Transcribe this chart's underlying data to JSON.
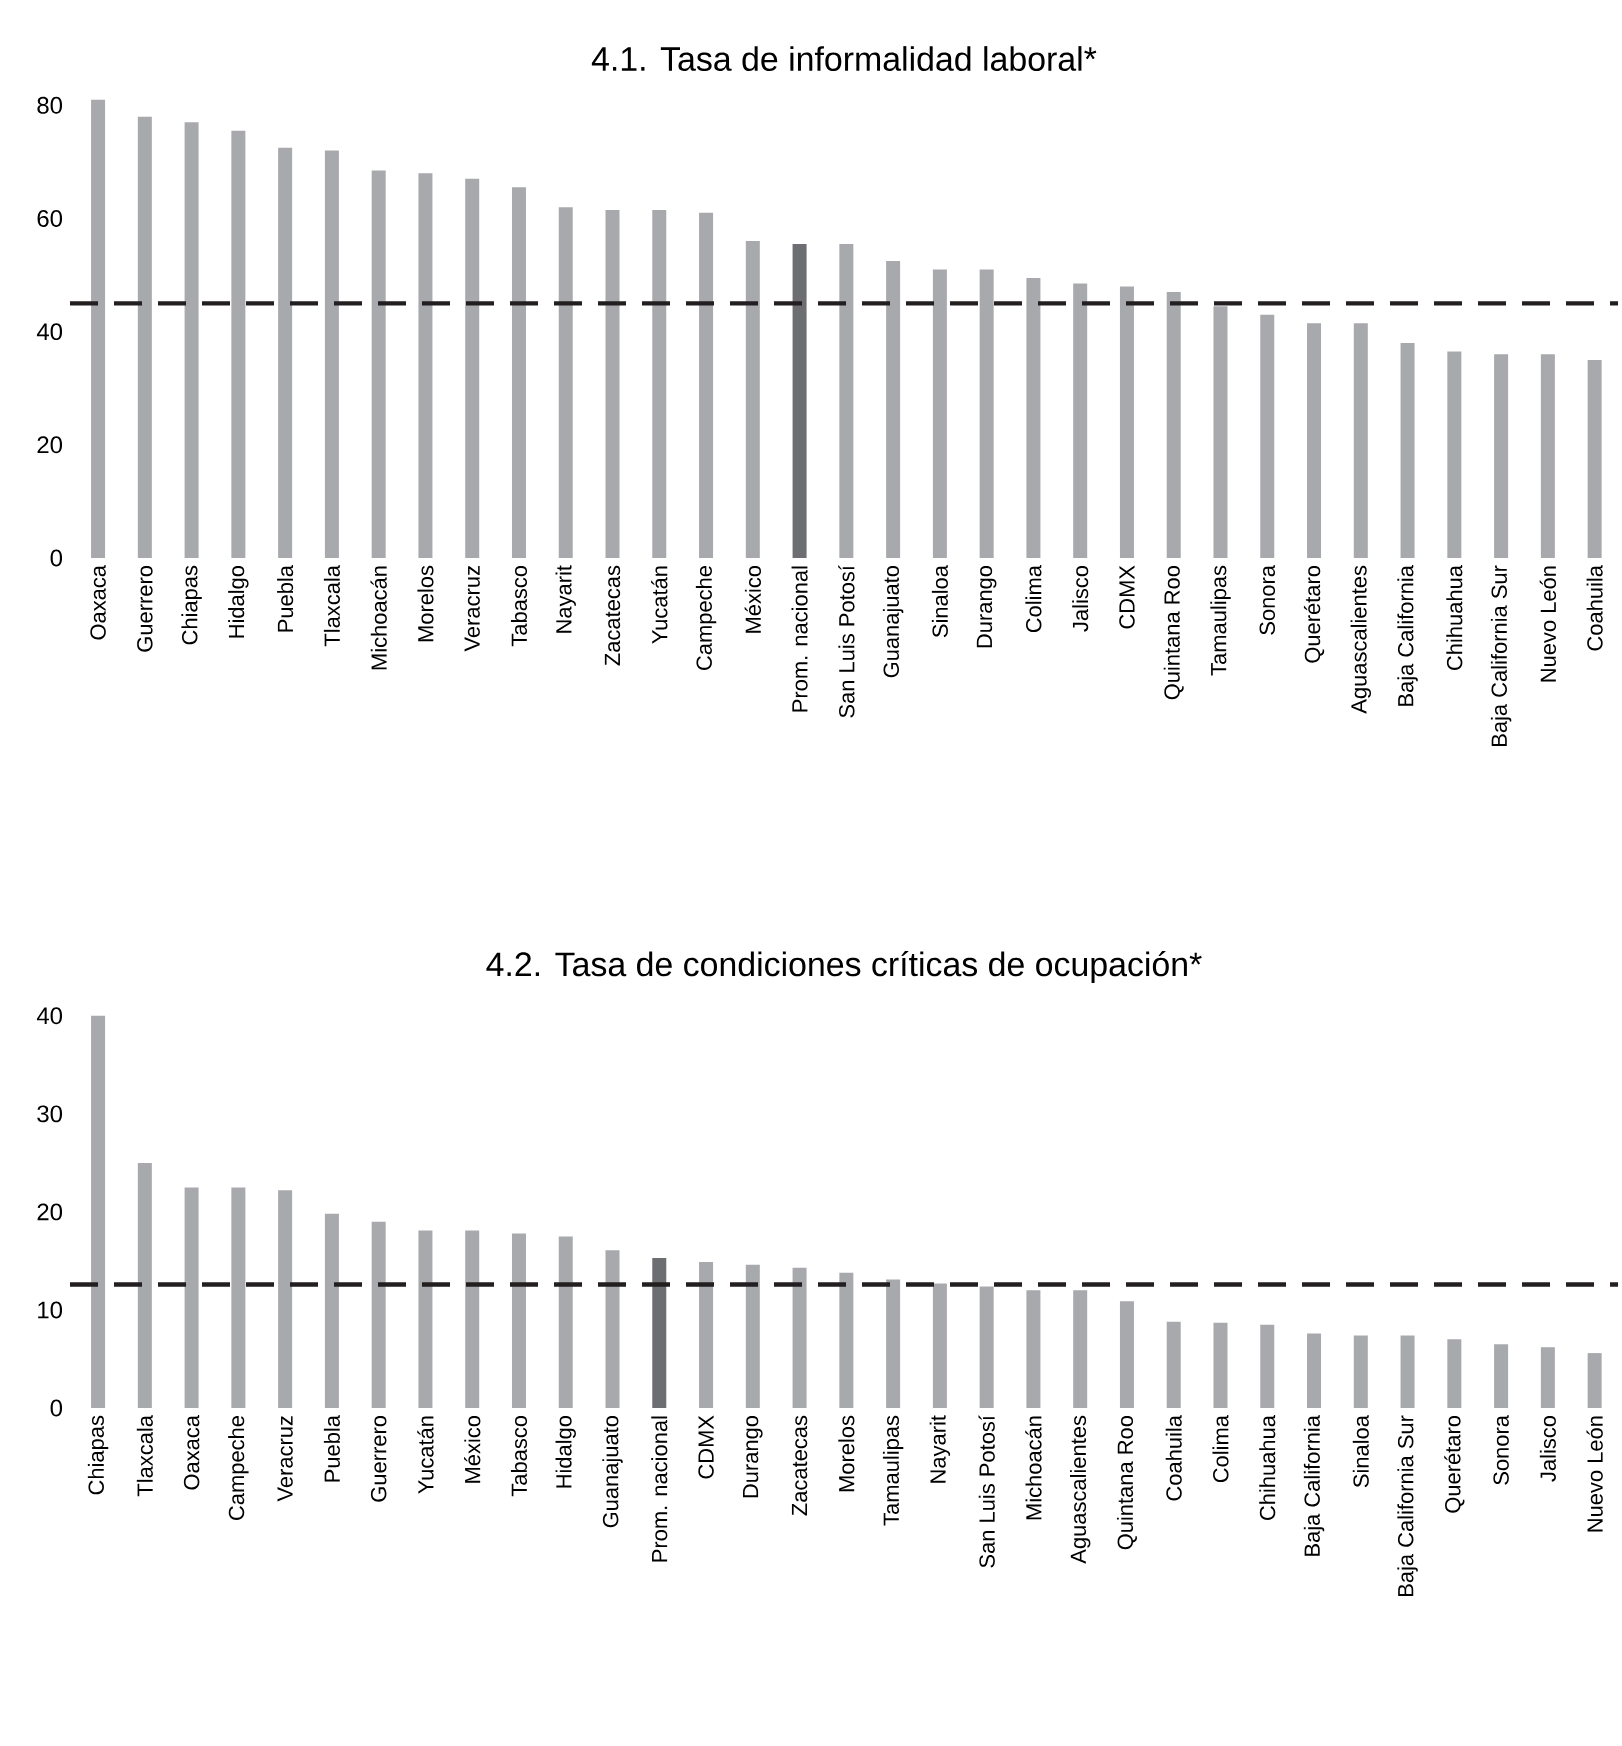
{
  "chart_data": [
    {
      "type": "bar",
      "title": "4.1. Tasa de informalidad laboral*",
      "categories": [
        "Oaxaca",
        "Guerrero",
        "Chiapas",
        "Hidalgo",
        "Puebla",
        "Tlaxcala",
        "Michoacán",
        "Morelos",
        "Veracruz",
        "Tabasco",
        "Nayarit",
        "Zacatecas",
        "Yucatán",
        "Campeche",
        "México",
        "Prom. nacional",
        "San Luis Potosí",
        "Guanajuato",
        "Sinaloa",
        "Durango",
        "Colima",
        "Jalisco",
        "CDMX",
        "Quintana Roo",
        "Tamaulipas",
        "Sonora",
        "Querétaro",
        "Aguascalientes",
        "Baja California",
        "Chihuahua",
        "Baja California Sur",
        "Nuevo León",
        "Coahuila"
      ],
      "values": [
        81,
        78,
        77,
        75.5,
        72.5,
        72,
        68.5,
        68,
        67,
        65.5,
        62,
        61.5,
        61.5,
        61,
        56,
        55.5,
        55.5,
        52.5,
        51,
        51,
        49.5,
        48.5,
        48,
        47,
        44.5,
        43,
        41.5,
        41.5,
        38,
        36.5,
        36,
        36,
        35
      ],
      "colors": [
        "#a7a9ac",
        "#a7a9ac",
        "#a7a9ac",
        "#a7a9ac",
        "#a7a9ac",
        "#a7a9ac",
        "#a7a9ac",
        "#a7a9ac",
        "#a7a9ac",
        "#a7a9ac",
        "#a7a9ac",
        "#a7a9ac",
        "#a7a9ac",
        "#a7a9ac",
        "#a7a9ac",
        "#6d6e71",
        "#a7a9ac",
        "#a7a9ac",
        "#a7a9ac",
        "#a7a9ac",
        "#a7a9ac",
        "#a7a9ac",
        "#a7a9ac",
        "#a7a9ac",
        "#a7a9ac",
        "#a7a9ac",
        "#a7a9ac",
        "#a7a9ac",
        "#a7a9ac",
        "#a7a9ac",
        "#a7a9ac",
        "#a7a9ac",
        "#a7a9ac"
      ],
      "ylim": [
        0,
        82
      ],
      "yticks": [
        0,
        20,
        40,
        60,
        80
      ],
      "ref_lines": [
        {
          "axis": "y",
          "value": 45,
          "color": "#231f20",
          "line_style": "dashed"
        }
      ]
    },
    {
      "type": "bar",
      "title": "4.2. Tasa de condiciones críticas de ocupación*",
      "categories": [
        "Chiapas",
        "Tlaxcala",
        "Oaxaca",
        "Campeche",
        "Veracruz",
        "Puebla",
        "Guerrero",
        "Yucatán",
        "México",
        "Tabasco",
        "Hidalgo",
        "Guanajuato",
        "Prom. nacional",
        "CDMX",
        "Durango",
        "Zacatecas",
        "Morelos",
        "Tamaulipas",
        "Nayarit",
        "San Luis Potosí",
        "Michoacán",
        "Aguascalientes",
        "Quintana Roo",
        "Coahuila",
        "Colima",
        "Chihuahua",
        "Baja California",
        "Sinaloa",
        "Baja California Sur",
        "Querétaro",
        "Sonora",
        "Jalisco",
        "Nuevo León"
      ],
      "values": [
        40,
        25,
        22.5,
        22.5,
        22.2,
        19.8,
        19,
        18.1,
        18.1,
        17.8,
        17.5,
        16.1,
        15.3,
        14.9,
        14.6,
        14.3,
        13.8,
        13.1,
        12.7,
        12.4,
        12,
        12,
        10.9,
        8.8,
        8.7,
        8.5,
        7.6,
        7.4,
        7.4,
        7,
        6.5,
        6.2,
        5.6
      ],
      "colors": [
        "#a7a9ac",
        "#a7a9ac",
        "#a7a9ac",
        "#a7a9ac",
        "#a7a9ac",
        "#a7a9ac",
        "#a7a9ac",
        "#a7a9ac",
        "#a7a9ac",
        "#a7a9ac",
        "#a7a9ac",
        "#a7a9ac",
        "#6d6e71",
        "#a7a9ac",
        "#a7a9ac",
        "#a7a9ac",
        "#a7a9ac",
        "#a7a9ac",
        "#a7a9ac",
        "#a7a9ac",
        "#a7a9ac",
        "#a7a9ac",
        "#a7a9ac",
        "#a7a9ac",
        "#a7a9ac",
        "#a7a9ac",
        "#a7a9ac",
        "#a7a9ac",
        "#a7a9ac",
        "#a7a9ac",
        "#a7a9ac",
        "#a7a9ac",
        "#a7a9ac"
      ],
      "ylim": [
        0,
        41
      ],
      "yticks": [
        0,
        10,
        20,
        30,
        40
      ],
      "ref_lines": [
        {
          "axis": "y",
          "value": 12.6,
          "color": "#231f20",
          "line_style": "dashed"
        }
      ]
    }
  ]
}
